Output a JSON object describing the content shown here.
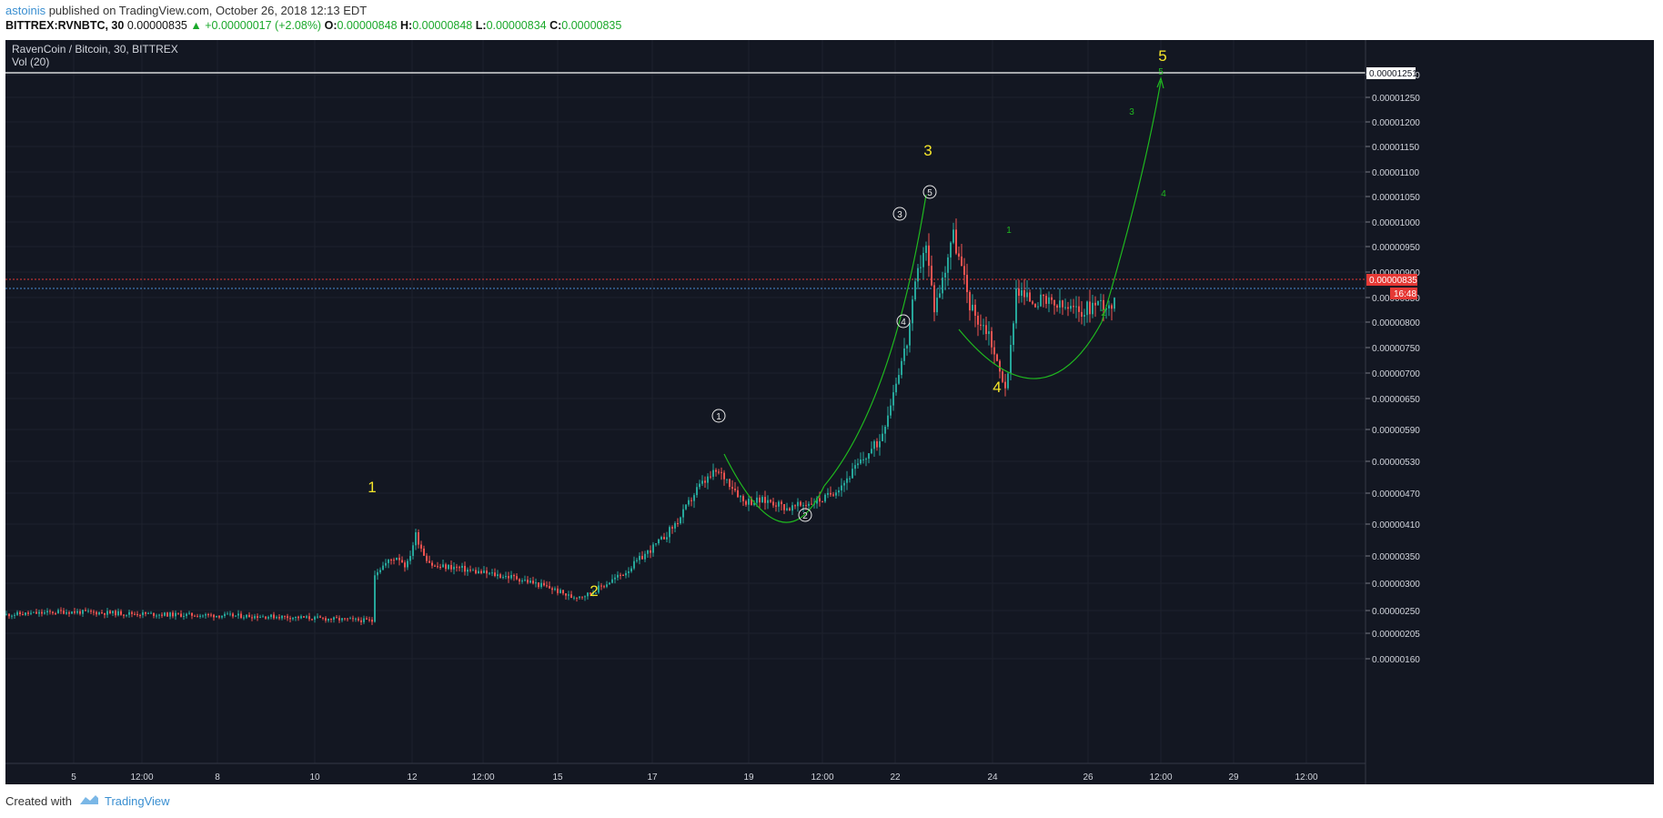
{
  "header": {
    "author": "astoinis",
    "published_text": "published on TradingView.com, October 26, 2018 12:13 EDT",
    "symbol": "BITTREX:RVNBTC, 30",
    "last": "0.00000835",
    "change": "+0.00000017 (+2.08%)",
    "o_label": "O:",
    "o_value": "0.00000848",
    "h_label": "H:",
    "h_value": "0.00000848",
    "l_label": "L:",
    "l_value": "0.00000834",
    "c_label": "C:",
    "c_value": "0.00000835"
  },
  "legend": {
    "title": "RavenCoin / Bitcoin, 30, BITTREX",
    "volume": "Vol (20)"
  },
  "footer": {
    "created_with": "Created with",
    "brand": "TradingView"
  },
  "colors": {
    "background": "#131722",
    "up": "#26a69a",
    "down": "#ef5350",
    "wave_green": "#1fb81f",
    "wave_yellow": "#f5e62a",
    "price_tag": "#e53935"
  },
  "chart_data": {
    "type": "line",
    "title": "RavenCoin / Bitcoin, 30, BITTREX",
    "ylim": [
      1.2e-06,
      1.32e-05
    ],
    "x_ticks": [
      "5",
      "12:00",
      "8",
      "10",
      "12",
      "12:00",
      "15",
      "17",
      "19",
      "12:00",
      "22",
      "24",
      "26",
      "12:00",
      "29",
      "12:00"
    ],
    "y_ticks": [
      "0.00001300",
      "0.00001250",
      "0.00001200",
      "0.00001150",
      "0.00001100",
      "0.00001050",
      "0.00001000",
      "0.00000950",
      "0.00000900",
      "0.00000850",
      "0.00000800",
      "0.00000750",
      "0.00000700",
      "0.00000650",
      "0.00000590",
      "0.00000530",
      "0.00000470",
      "0.00000410",
      "0.00000350",
      "0.00000300",
      "0.00000250",
      "0.00000205",
      "0.00000160"
    ],
    "series": [
      {
        "x": [
          0,
          40,
          60,
          120,
          180,
          240,
          300,
          360,
          400,
          404,
          405,
          420,
          430,
          440,
          450,
          460,
          470,
          490,
          520,
          560,
          600,
          620,
          640,
          660,
          680,
          700,
          720,
          740,
          760,
          780,
          790,
          800,
          810,
          820,
          840,
          860,
          880,
          900,
          920,
          940,
          960,
          970,
          980,
          990,
          1000,
          1010,
          1020,
          1030,
          1040,
          1060,
          1070,
          1080,
          1090,
          1100,
          1110,
          1120,
          1140,
          1160,
          1180,
          1200,
          1218
        ],
        "y": [
          2.42,
          2.45,
          2.48,
          2.45,
          2.42,
          2.4,
          2.38,
          2.33,
          2.3,
          2.28,
          3.2,
          3.4,
          3.5,
          3.3,
          3.9,
          3.5,
          3.3,
          3.3,
          3.2,
          3.1,
          2.9,
          2.75,
          2.8,
          3.0,
          3.2,
          3.5,
          3.8,
          4.2,
          4.8,
          5.1,
          5.0,
          4.8,
          4.55,
          4.55,
          4.55,
          4.4,
          4.5,
          4.6,
          4.9,
          5.3,
          5.7,
          6.3,
          7.0,
          7.6,
          8.8,
          9.6,
          8.3,
          8.9,
          9.8,
          8.3,
          8.0,
          7.8,
          7.1,
          6.7,
          8.7,
          8.5,
          8.4,
          8.3,
          8.2,
          8.4,
          8.35
        ]
      }
    ],
    "last_price": "0.00000835",
    "countdown": "16:48",
    "marked_level": "0.00001251",
    "annotations": {
      "major_waves": [
        "1",
        "2",
        "3",
        "4",
        "5"
      ],
      "minor_waves": [
        "1",
        "2",
        "3",
        "4",
        "5"
      ],
      "projection_labels": [
        "1",
        "2",
        "3",
        "4",
        "5"
      ]
    }
  }
}
